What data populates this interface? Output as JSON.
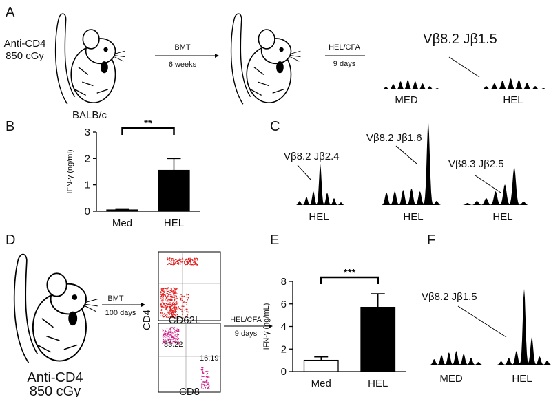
{
  "panels": {
    "A": {
      "letter": "A",
      "dose": [
        "Anti-CD4",
        "850 cGy"
      ],
      "strain": "BALB/c",
      "step1": [
        "BMT",
        "6 weeks"
      ],
      "step2": [
        "HEL/CFA",
        "9 days"
      ],
      "clone": "Vβ8.2 Jβ1.5",
      "samples": [
        "MED",
        "HEL"
      ]
    },
    "B": {
      "letter": "B"
    },
    "C": {
      "letter": "C",
      "clones": [
        "Vβ8.2 Jβ2.4",
        "Vβ8.2 Jβ1.6",
        "Vβ8.3 Jβ2.5"
      ],
      "samples": [
        "HEL",
        "HEL",
        "HEL"
      ]
    },
    "D": {
      "letter": "D",
      "dose": [
        "Anti-CD4",
        "850 cGy"
      ],
      "step1": [
        "BMT",
        "100 days"
      ],
      "flow": {
        "top_axis": "CD62L",
        "y_axis": "CD4",
        "x_axis": "CD8",
        "gates": [
          "83.22",
          "16.19"
        ]
      },
      "step2": [
        "HEL/CFA",
        "9 days"
      ]
    },
    "E": {
      "letter": "E"
    },
    "F": {
      "letter": "F",
      "clone": "Vβ8.2 Jβ1.5",
      "samples": [
        "MED",
        "HEL"
      ]
    }
  },
  "chart_data": [
    {
      "type": "bar",
      "ylabel": "IFN-γ (ng/ml)",
      "categories": [
        "Med",
        "HEL"
      ],
      "values": [
        0.05,
        1.55
      ],
      "errors": [
        0.02,
        0.45
      ],
      "colors": [
        "#000000",
        "#000000"
      ],
      "ylim": [
        0,
        3
      ],
      "yticks": [
        0,
        1,
        2,
        3
      ],
      "annotation": "**"
    },
    {
      "type": "bar",
      "ylabel": "IFN-γ (ng/mL)",
      "categories": [
        "Med",
        "HEL"
      ],
      "values": [
        1.0,
        5.7
      ],
      "errors": [
        0.3,
        1.2
      ],
      "colors": [
        "#ffffff",
        "#000000"
      ],
      "ylim": [
        0,
        8
      ],
      "yticks": [
        0,
        2,
        4,
        6,
        8
      ],
      "annotation": "***"
    }
  ]
}
